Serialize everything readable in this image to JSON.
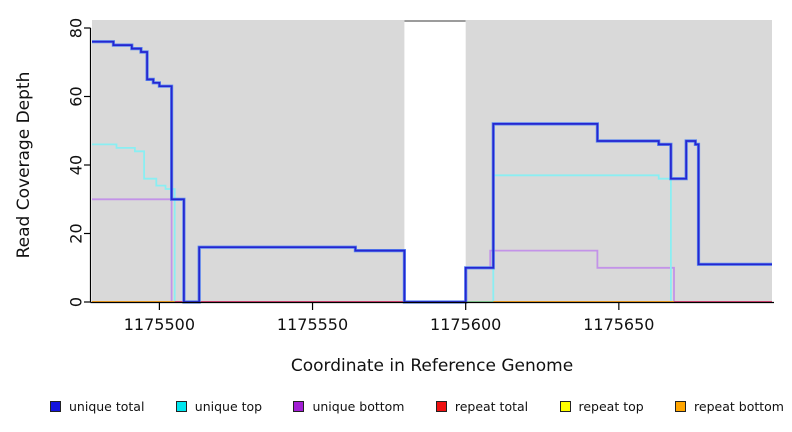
{
  "page": {
    "background": "#ffffff"
  },
  "chart_data": {
    "type": "line",
    "subtype": "step-coverage",
    "title": "",
    "xlabel": "Coordinate in Reference Genome",
    "ylabel": "Read Coverage Depth",
    "xlim": [
      1175478,
      1175700
    ],
    "ylim": [
      0,
      81
    ],
    "xticks": [
      1175500,
      1175550,
      1175600,
      1175650
    ],
    "yticks": [
      0,
      20,
      40,
      60,
      80
    ],
    "grid": false,
    "legend_position": "bottom",
    "background_regions": [
      {
        "name": "covered-left",
        "from": 1175478,
        "to": 1175580,
        "fill": "#d9d9d9",
        "top_border": false
      },
      {
        "name": "uncovered-gap",
        "from": 1175580,
        "to": 1175600,
        "fill": "#ffffff",
        "top_border": true
      },
      {
        "name": "covered-right",
        "from": 1175600,
        "to": 1175700,
        "fill": "#d9d9d9",
        "top_border": false
      }
    ],
    "series": [
      {
        "name": "unique total",
        "key": "unique_total",
        "line_color": "#2626cf",
        "halo_color": "#4b7df2",
        "points": [
          [
            1175478,
            76
          ],
          [
            1175485,
            75
          ],
          [
            1175491,
            74
          ],
          [
            1175494,
            73
          ],
          [
            1175496,
            65
          ],
          [
            1175498,
            64
          ],
          [
            1175500,
            63
          ],
          [
            1175504,
            30
          ],
          [
            1175508,
            0
          ],
          [
            1175513,
            16
          ],
          [
            1175564,
            15
          ],
          [
            1175580,
            0
          ],
          [
            1175600,
            10
          ],
          [
            1175609,
            52
          ],
          [
            1175643,
            47
          ],
          [
            1175663,
            46
          ],
          [
            1175667,
            36
          ],
          [
            1175672,
            47
          ],
          [
            1175675,
            46
          ],
          [
            1175676,
            11
          ]
        ]
      },
      {
        "name": "unique top",
        "key": "unique_top",
        "line_color": "#8aeef2",
        "points": [
          [
            1175478,
            46
          ],
          [
            1175486,
            45
          ],
          [
            1175492,
            44
          ],
          [
            1175495,
            36
          ],
          [
            1175499,
            34
          ],
          [
            1175502,
            33
          ],
          [
            1175505,
            0
          ],
          [
            1175609,
            37
          ],
          [
            1175663,
            36
          ],
          [
            1175667,
            0
          ]
        ]
      },
      {
        "name": "unique bottom",
        "key": "unique_bottom",
        "line_color": "#c393e8",
        "points": [
          [
            1175478,
            30
          ],
          [
            1175504,
            0
          ],
          [
            1175600,
            10
          ],
          [
            1175608,
            15
          ],
          [
            1175643,
            10
          ],
          [
            1175668,
            0
          ]
        ]
      },
      {
        "name": "repeat total",
        "key": "repeat_total",
        "line_color": "#e04678",
        "points": [
          [
            1175478,
            0
          ]
        ]
      },
      {
        "name": "repeat top",
        "key": "repeat_top",
        "line_color": "#f5f078",
        "points": [
          [
            1175478,
            0
          ]
        ]
      },
      {
        "name": "repeat bottom",
        "key": "repeat_bottom",
        "line_color": "#ffa41e",
        "points": [
          [
            1175478,
            0
          ]
        ]
      }
    ],
    "baseline_visible_segments": [
      {
        "from": 1175478,
        "to": 1175505,
        "color": "#ffa41e",
        "source": "repeat bottom"
      },
      {
        "from": 1175505,
        "to": 1175580,
        "color": "#e04678",
        "source": "repeat total"
      },
      {
        "from": 1175600,
        "to": 1175609,
        "color": "#8fd99c",
        "source": "repeat top + unique top overlap"
      },
      {
        "from": 1175609,
        "to": 1175668,
        "color": "#ffa41e",
        "source": "repeat bottom"
      },
      {
        "from": 1175668,
        "to": 1175700,
        "color": "#e04678",
        "source": "repeat total"
      }
    ],
    "colors": {
      "plot_background": "#d9d9d9",
      "gap_top_border": "#7b7b7b",
      "axis": "#000000",
      "tick_text": "#111111"
    }
  },
  "legend": {
    "items": [
      {
        "label": "unique total",
        "color": "#1414dd"
      },
      {
        "label": "unique top",
        "color": "#00e6ee"
      },
      {
        "label": "unique bottom",
        "color": "#a21fd4"
      },
      {
        "label": "repeat total",
        "color": "#ee1111"
      },
      {
        "label": "repeat top",
        "color": "#ffff00"
      },
      {
        "label": "repeat bottom",
        "color": "#ffa500"
      }
    ]
  }
}
